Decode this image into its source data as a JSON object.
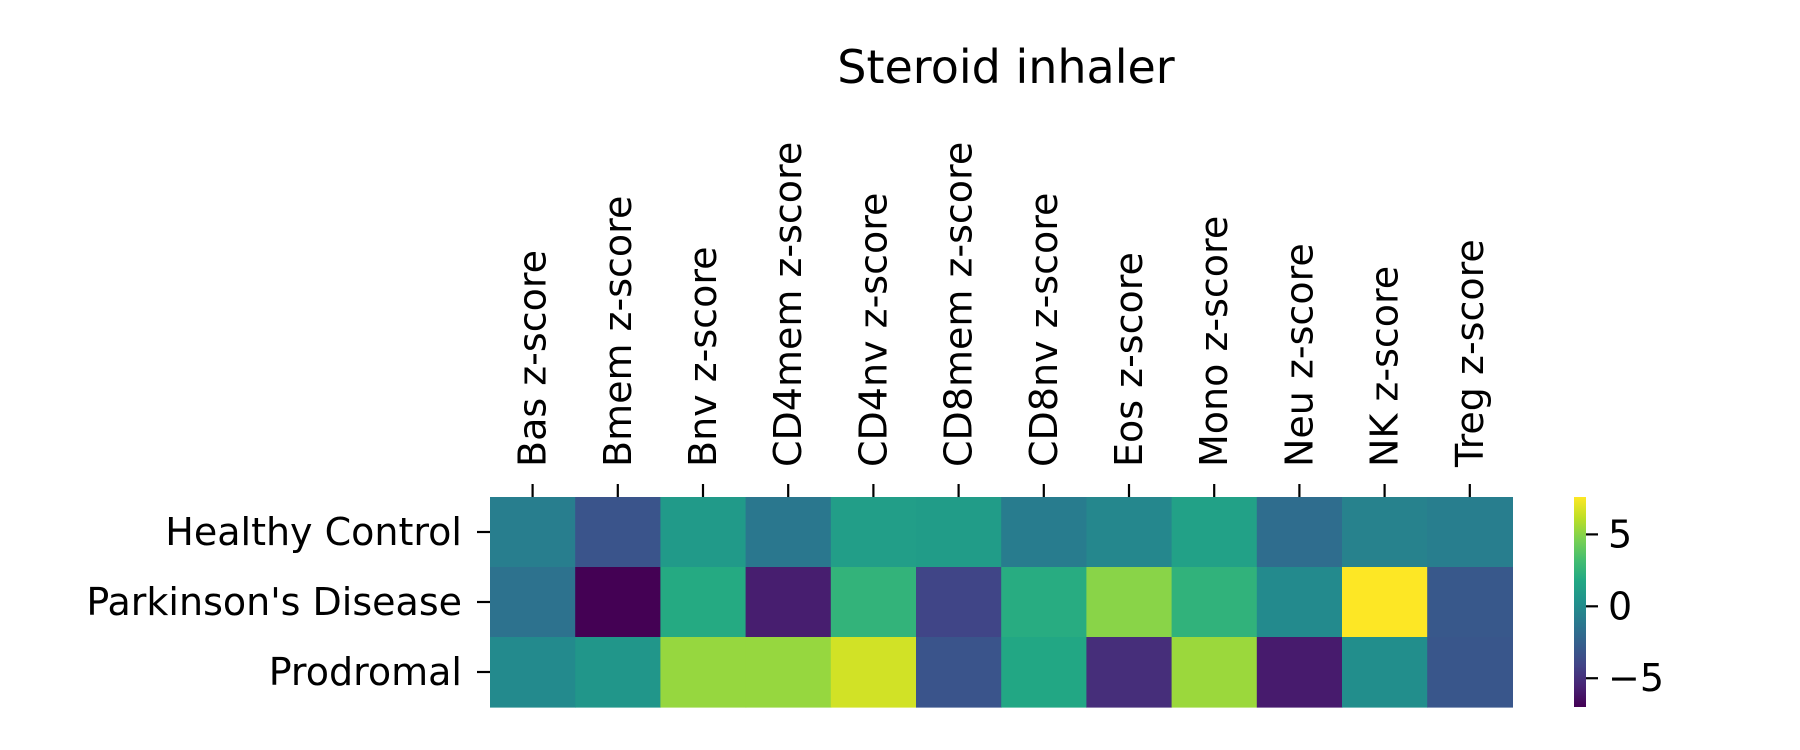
{
  "chart_data": {
    "type": "heatmap",
    "title": "Steroid inhaler",
    "rows": [
      "Healthy Control",
      "Parkinson's Disease",
      "Prodromal"
    ],
    "columns": [
      "Bas z-score",
      "Bmem z-score",
      "Bnv z-score",
      "CD4mem z-score",
      "CD4nv z-score",
      "CD8mem z-score",
      "CD8nv z-score",
      "Eos z-score",
      "Mono z-score",
      "Neu z-score",
      "NK z-score",
      "Treg z-score"
    ],
    "values": [
      [
        -0.8,
        -3.2,
        0.9,
        -1.2,
        1.1,
        1.0,
        -0.9,
        -0.3,
        1.3,
        -1.8,
        -0.6,
        -0.8
      ],
      [
        -1.5,
        -7.0,
        1.9,
        -5.8,
        2.5,
        -4.0,
        2.0,
        5.0,
        2.4,
        -0.1,
        7.6,
        -3.0
      ],
      [
        -0.1,
        0.6,
        5.3,
        5.3,
        6.6,
        -3.2,
        1.7,
        -5.1,
        5.4,
        -5.9,
        0.1,
        -3.1
      ]
    ],
    "colorbar": {
      "colormap": "viridis",
      "vmin": -7.0,
      "vmax": 7.6,
      "ticks": [
        5,
        0,
        -5
      ],
      "tick_labels": [
        "5",
        "0",
        "−5"
      ]
    },
    "xlabel": "",
    "ylabel": "",
    "x_axis_position": "top",
    "grid": false
  }
}
